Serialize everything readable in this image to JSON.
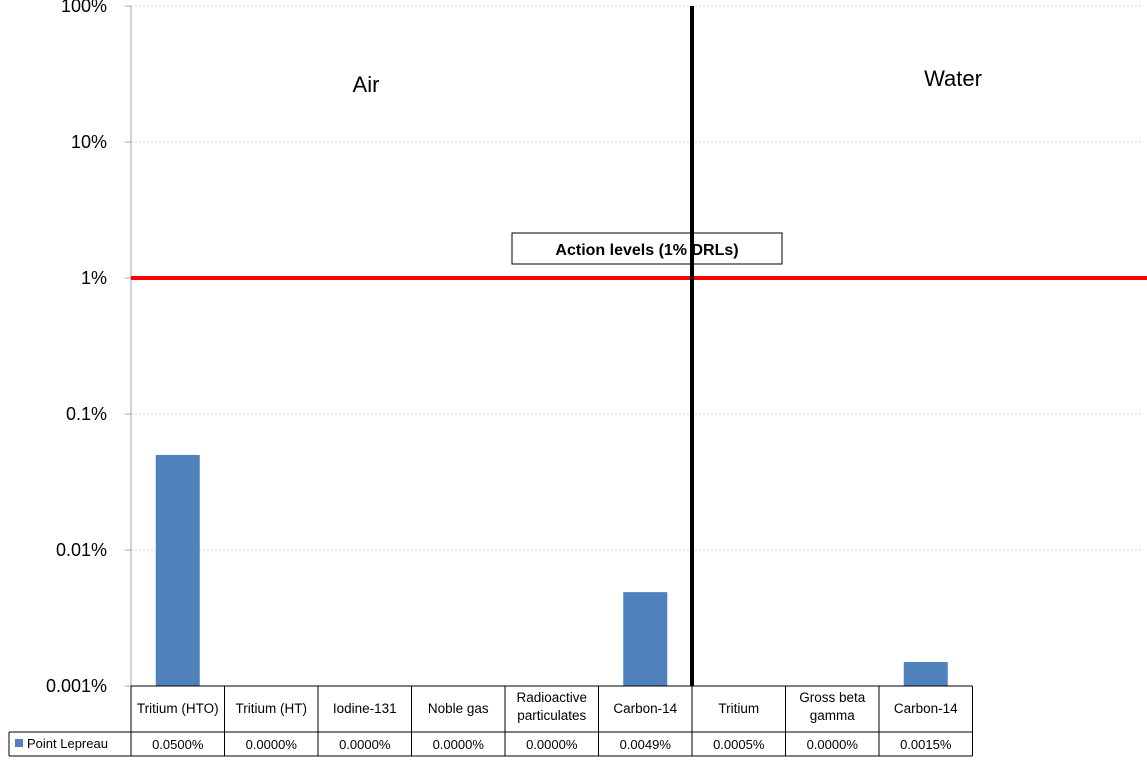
{
  "chart_data": {
    "type": "bar",
    "y_scale": "log",
    "ylim": [
      "0.001%",
      "100%"
    ],
    "y_ticks": [
      "100%",
      "10%",
      "1%",
      "0.1%",
      "0.01%",
      "0.001%"
    ],
    "y_tick_values": [
      100,
      10,
      1,
      0.1,
      0.01,
      0.001
    ],
    "grid": true,
    "categories": [
      [
        "Tritium (HTO)"
      ],
      [
        "Tritium (HT)"
      ],
      [
        "Iodine-131"
      ],
      [
        "Noble gas"
      ],
      [
        "Radioactive",
        "particulates"
      ],
      [
        "Carbon-14"
      ],
      [
        "Tritium"
      ],
      [
        "Gross beta",
        "gamma"
      ],
      [
        "Carbon-14"
      ]
    ],
    "series": [
      {
        "name": "Point Lepreau",
        "color": "#4f81bd",
        "values": [
          0.05,
          0.0,
          0.0,
          0.0,
          0.0,
          0.0049,
          0.0005,
          0.0,
          0.0015
        ],
        "value_labels": [
          "0.0500%",
          "0.0000%",
          "0.0000%",
          "0.0000%",
          "0.0000%",
          "0.0049%",
          "0.0005%",
          "0.0000%",
          "0.0015%"
        ]
      }
    ],
    "regions": [
      {
        "label": "Air",
        "categories": 6
      },
      {
        "label": "Water",
        "categories": 3
      }
    ],
    "reference_line": {
      "value": 1,
      "label": "Action levels (1% DRLs)",
      "color": "#ff0000"
    },
    "divider_color": "#000000",
    "legend_position": "data-table"
  }
}
